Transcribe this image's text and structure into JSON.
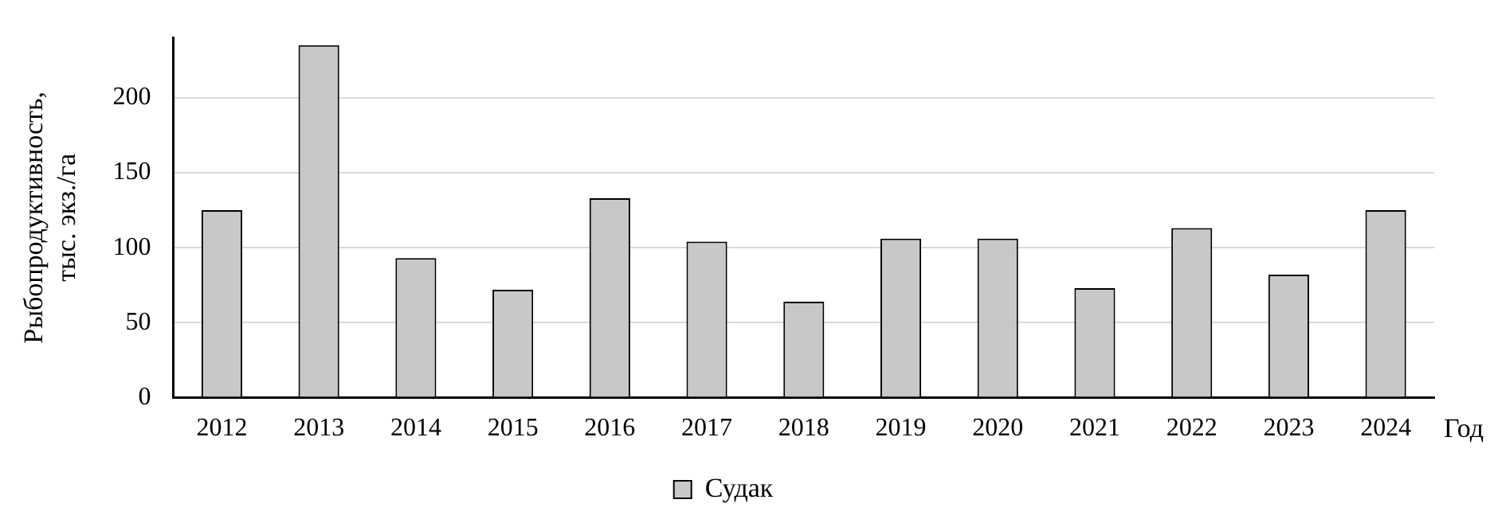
{
  "chart_data": {
    "type": "bar",
    "ylabel": "Рыбопродуктивность, тыс. экз./га",
    "xlabel": "Год",
    "categories": [
      "2012",
      "2013",
      "2014",
      "2015",
      "2016",
      "2017",
      "2018",
      "2019",
      "2020",
      "2021",
      "2022",
      "2023",
      "2024"
    ],
    "series": [
      {
        "name": "Судак",
        "color": "#c8c8c8",
        "values": [
          125,
          235,
          93,
          72,
          133,
          104,
          64,
          106,
          106,
          73,
          113,
          82,
          125
        ]
      }
    ],
    "ylim": [
      0,
      240
    ],
    "yticks": [
      0,
      50,
      100,
      150,
      200
    ],
    "grid": "y",
    "legend": "bottom"
  }
}
